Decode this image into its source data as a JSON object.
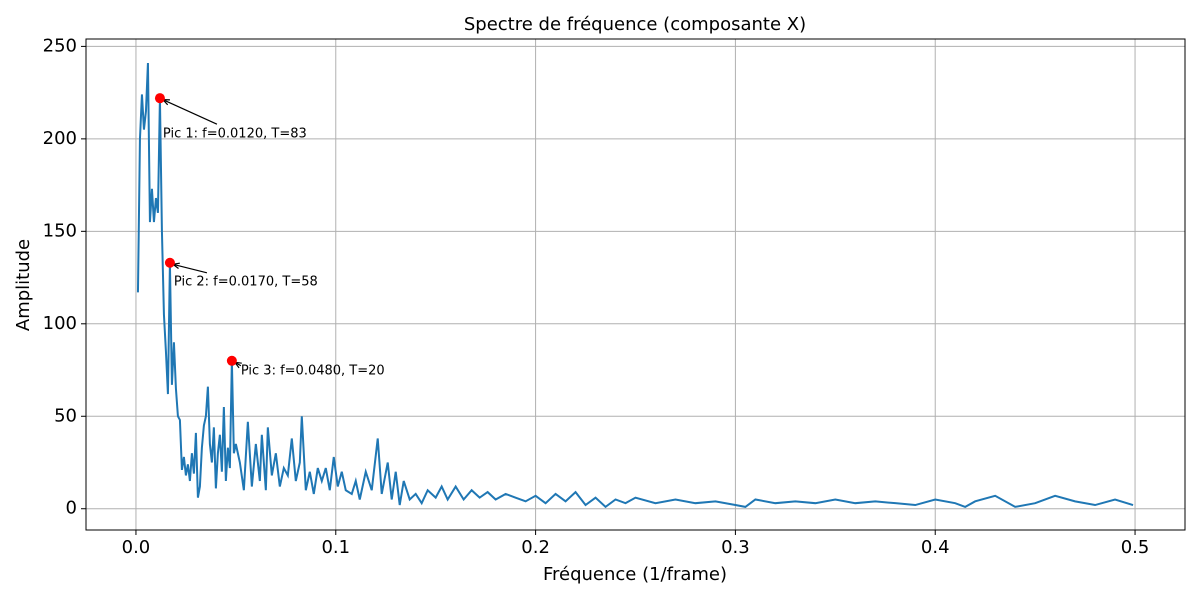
{
  "chart_data": {
    "type": "line",
    "title": "Spectre de fréquence (composante X)",
    "xlabel": "Fréquence (1/frame)",
    "ylabel": "Amplitude",
    "color": "#1f77b4",
    "grid": true,
    "xlim": [
      -0.025,
      0.525
    ],
    "ylim": [
      -11.5,
      254
    ],
    "xticks": [
      {
        "value": 0,
        "label": "0.0"
      },
      0.1,
      0.2,
      0.3,
      0.4,
      0.5
    ],
    "yticks": [
      0,
      50,
      100,
      150,
      200,
      250
    ],
    "x": [
      0.001,
      0.002,
      0.003,
      0.004,
      0.005,
      0.006,
      0.007,
      0.008,
      0.009,
      0.01,
      0.011,
      0.012,
      0.013,
      0.014,
      0.015,
      0.016,
      0.017,
      0.018,
      0.019,
      0.02,
      0.021,
      0.022,
      0.023,
      0.024,
      0.025,
      0.026,
      0.027,
      0.028,
      0.029,
      0.03,
      0.031,
      0.032,
      0.033,
      0.034,
      0.035,
      0.036,
      0.037,
      0.038,
      0.039,
      0.04,
      0.041,
      0.042,
      0.043,
      0.044,
      0.045,
      0.046,
      0.047,
      0.048,
      0.049,
      0.05,
      0.052,
      0.054,
      0.056,
      0.058,
      0.06,
      0.062,
      0.063,
      0.065,
      0.066,
      0.068,
      0.07,
      0.072,
      0.074,
      0.076,
      0.078,
      0.08,
      0.082,
      0.083,
      0.085,
      0.087,
      0.089,
      0.091,
      0.093,
      0.095,
      0.097,
      0.099,
      0.101,
      0.103,
      0.105,
      0.108,
      0.11,
      0.112,
      0.115,
      0.118,
      0.121,
      0.123,
      0.126,
      0.128,
      0.13,
      0.132,
      0.134,
      0.137,
      0.14,
      0.143,
      0.146,
      0.15,
      0.153,
      0.156,
      0.16,
      0.164,
      0.168,
      0.172,
      0.176,
      0.18,
      0.185,
      0.19,
      0.195,
      0.2,
      0.205,
      0.21,
      0.215,
      0.22,
      0.225,
      0.23,
      0.235,
      0.24,
      0.245,
      0.25,
      0.26,
      0.27,
      0.28,
      0.29,
      0.3,
      0.305,
      0.31,
      0.32,
      0.33,
      0.34,
      0.35,
      0.36,
      0.37,
      0.38,
      0.39,
      0.4,
      0.41,
      0.415,
      0.42,
      0.43,
      0.44,
      0.45,
      0.46,
      0.47,
      0.48,
      0.49,
      0.499
    ],
    "values": [
      117,
      200,
      224,
      205,
      215,
      241,
      155,
      173,
      155,
      168,
      160,
      222,
      150,
      105,
      85,
      62,
      133,
      67,
      90,
      65,
      50,
      48,
      21,
      28,
      18,
      24,
      15,
      30,
      19,
      41,
      6,
      12,
      33,
      45,
      50,
      66,
      35,
      25,
      44,
      11,
      30,
      40,
      20,
      55,
      15,
      33,
      22,
      80,
      30,
      35,
      25,
      10,
      47,
      12,
      35,
      15,
      40,
      10,
      44,
      18,
      30,
      12,
      22,
      18,
      38,
      15,
      25,
      50,
      10,
      20,
      8,
      22,
      15,
      22,
      10,
      28,
      12,
      20,
      10,
      8,
      15,
      5,
      20,
      10,
      38,
      8,
      25,
      5,
      20,
      2,
      15,
      5,
      8,
      3,
      10,
      6,
      12,
      5,
      12,
      5,
      10,
      6,
      9,
      5,
      8,
      6,
      4,
      7,
      3,
      8,
      4,
      9,
      2,
      6,
      1,
      5,
      3,
      6,
      3,
      5,
      3,
      4,
      2,
      1,
      5,
      3,
      4,
      3,
      5,
      3,
      4,
      3,
      2,
      5,
      3,
      1,
      4,
      7,
      1,
      3,
      7,
      4,
      2,
      5,
      2
    ],
    "peaks": {
      "color": "#ff0000",
      "x": [
        0.012,
        0.017,
        0.048
      ],
      "values": [
        222,
        133,
        80
      ],
      "labels": [
        "Pic 1: f=0.0120, T=83",
        "Pic 2: f=0.0170, T=58",
        "Pic 3: f=0.0480, T=20"
      ]
    }
  }
}
